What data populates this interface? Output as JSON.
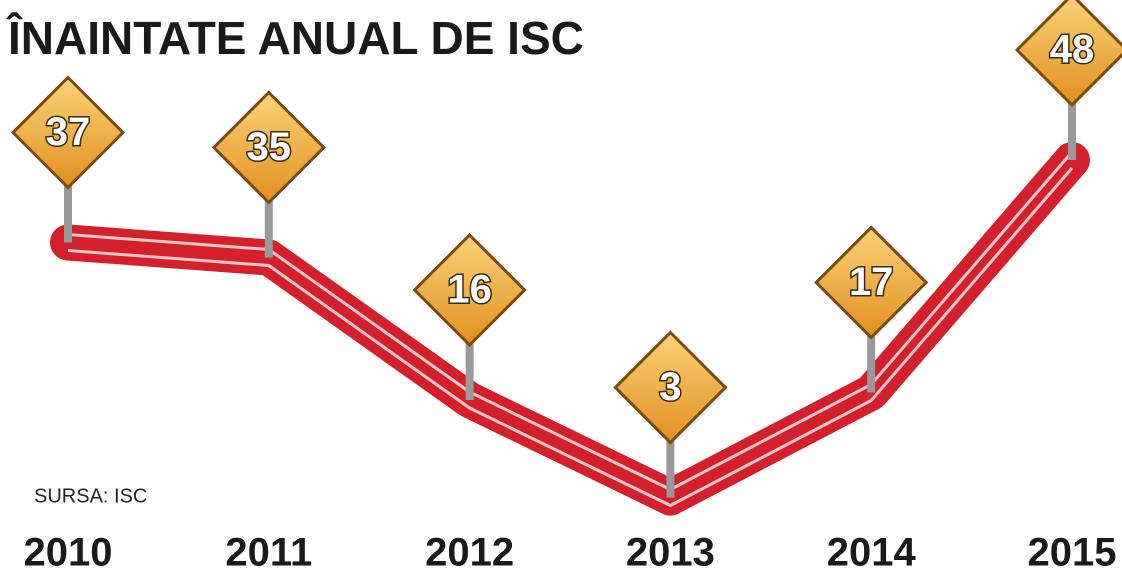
{
  "chart_data": {
    "type": "line",
    "title": "ÎNAINTATE ANUAL DE ISC",
    "source": "SURSA: ISC",
    "categories": [
      "2010",
      "2011",
      "2012",
      "2013",
      "2014",
      "2015"
    ],
    "values": [
      37,
      35,
      16,
      3,
      17,
      48
    ],
    "color": "#d3202a",
    "sign_color": "#f2a93b"
  }
}
